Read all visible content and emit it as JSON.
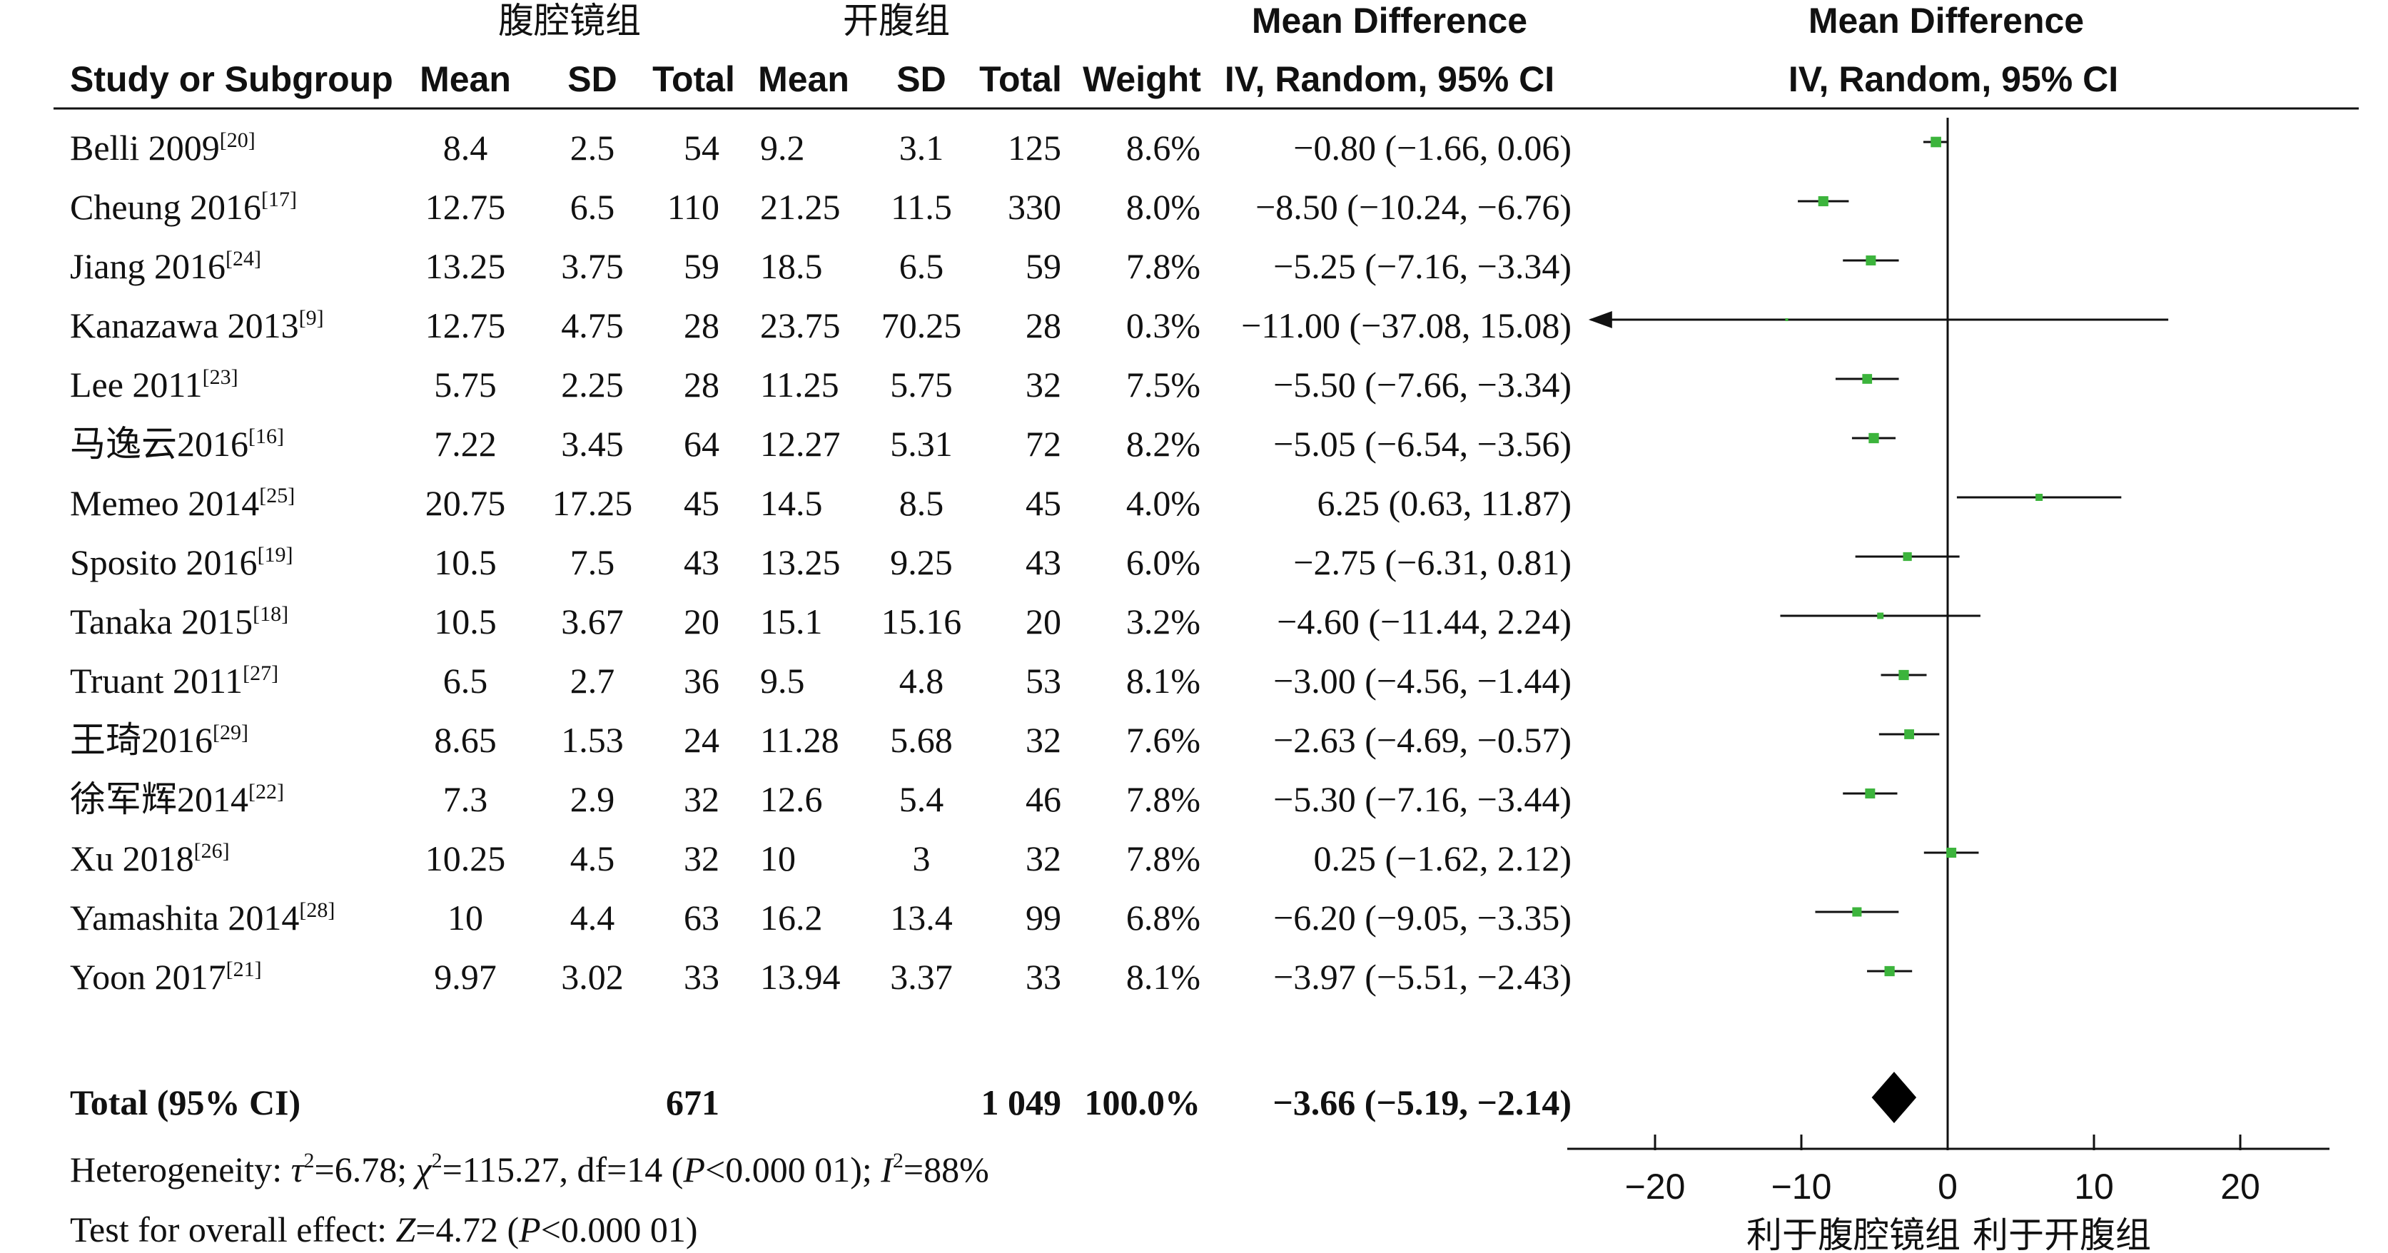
{
  "header": {
    "group_lap": "腹腔镜组",
    "group_open": "开腹组",
    "md_title": "Mean Difference",
    "study_col": "Study or Subgroup",
    "mean": "Mean",
    "sd": "SD",
    "total": "Total",
    "weight": "Weight",
    "method": "IV, Random, 95% CI",
    "plot_title": "Mean Difference",
    "plot_method": "IV, Random, 95% CI"
  },
  "rows": [
    {
      "study": "Belli 2009",
      "ref": "[20]",
      "m1": "8.4",
      "sd1": "2.5",
      "n1": "54",
      "m2": "9.2",
      "sd2": "3.1",
      "n2": "125",
      "weight": "8.6%",
      "ci": "−0.80 (−1.66, 0.06)"
    },
    {
      "study": "Cheung 2016",
      "ref": "[17]",
      "m1": "12.75",
      "sd1": "6.5",
      "n1": "110",
      "m2": "21.25",
      "sd2": "11.5",
      "n2": "330",
      "weight": "8.0%",
      "ci": "−8.50 (−10.24, −6.76)"
    },
    {
      "study": "Jiang 2016",
      "ref": "[24]",
      "m1": "13.25",
      "sd1": "3.75",
      "n1": "59",
      "m2": "18.5",
      "sd2": "6.5",
      "n2": "59",
      "weight": "7.8%",
      "ci": "−5.25 (−7.16, −3.34)"
    },
    {
      "study": "Kanazawa 2013",
      "ref": "[9]",
      "m1": "12.75",
      "sd1": "4.75",
      "n1": "28",
      "m2": "23.75",
      "sd2": "70.25",
      "n2": "28",
      "weight": "0.3%",
      "ci": "−11.00 (−37.08, 15.08)"
    },
    {
      "study": "Lee 2011",
      "ref": "[23]",
      "m1": "5.75",
      "sd1": "2.25",
      "n1": "28",
      "m2": "11.25",
      "sd2": "5.75",
      "n2": "32",
      "weight": "7.5%",
      "ci": "−5.50 (−7.66, −3.34)"
    },
    {
      "study": "马逸云2016",
      "ref": "[16]",
      "m1": "7.22",
      "sd1": "3.45",
      "n1": "64",
      "m2": "12.27",
      "sd2": "5.31",
      "n2": "72",
      "weight": "8.2%",
      "ci": "−5.05 (−6.54, −3.56)"
    },
    {
      "study": "Memeo 2014",
      "ref": "[25]",
      "m1": "20.75",
      "sd1": "17.25",
      "n1": "45",
      "m2": "14.5",
      "sd2": "8.5",
      "n2": "45",
      "weight": "4.0%",
      "ci": "6.25 (0.63, 11.87)"
    },
    {
      "study": "Sposito 2016",
      "ref": "[19]",
      "m1": "10.5",
      "sd1": "7.5",
      "n1": "43",
      "m2": "13.25",
      "sd2": "9.25",
      "n2": "43",
      "weight": "6.0%",
      "ci": "−2.75 (−6.31, 0.81)"
    },
    {
      "study": "Tanaka 2015",
      "ref": "[18]",
      "m1": "10.5",
      "sd1": "3.67",
      "n1": "20",
      "m2": "15.1",
      "sd2": "15.16",
      "n2": "20",
      "weight": "3.2%",
      "ci": "−4.60 (−11.44, 2.24)"
    },
    {
      "study": "Truant 2011",
      "ref": "[27]",
      "m1": "6.5",
      "sd1": "2.7",
      "n1": "36",
      "m2": "9.5",
      "sd2": "4.8",
      "n2": "53",
      "weight": "8.1%",
      "ci": "−3.00 (−4.56, −1.44)"
    },
    {
      "study": "王琦2016",
      "ref": "[29]",
      "m1": "8.65",
      "sd1": "1.53",
      "n1": "24",
      "m2": "11.28",
      "sd2": "5.68",
      "n2": "32",
      "weight": "7.6%",
      "ci": "−2.63 (−4.69, −0.57)"
    },
    {
      "study": "徐军辉2014",
      "ref": "[22]",
      "m1": "7.3",
      "sd1": "2.9",
      "n1": "32",
      "m2": "12.6",
      "sd2": "5.4",
      "n2": "46",
      "weight": "7.8%",
      "ci": "−5.30 (−7.16, −3.44)"
    },
    {
      "study": "Xu 2018",
      "ref": "[26]",
      "m1": "10.25",
      "sd1": "4.5",
      "n1": "32",
      "m2": "10",
      "sd2": "3",
      "n2": "32",
      "weight": "7.8%",
      "ci": "0.25 (−1.62, 2.12)"
    },
    {
      "study": "Yamashita 2014",
      "ref": "[28]",
      "m1": "10",
      "sd1": "4.4",
      "n1": "63",
      "m2": "16.2",
      "sd2": "13.4",
      "n2": "99",
      "weight": "6.8%",
      "ci": "−6.20 (−9.05, −3.35)"
    },
    {
      "study": "Yoon 2017",
      "ref": "[21]",
      "m1": "9.97",
      "sd1": "3.02",
      "n1": "33",
      "m2": "13.94",
      "sd2": "3.37",
      "n2": "33",
      "weight": "8.1%",
      "ci": "−3.97 (−5.51, −2.43)"
    }
  ],
  "total": {
    "label": "Total (95% CI)",
    "n1": "671",
    "n2": "1 049",
    "weight": "100.0%",
    "ci": "−3.66 (−5.19, −2.14)"
  },
  "footer": {
    "het_a": "Heterogeneity: ",
    "tau": "τ",
    "het_b": "=6.78; ",
    "chi": "χ",
    "het_c": "=115.27, df=14 (",
    "p1": "P",
    "het_d": "<0.000 01); ",
    "i": "I",
    "het_e": "=88%",
    "sup2": "2",
    "eff_a": "Test for overall effect: ",
    "z": "Z",
    "eff_b": "=4.72 (",
    "p2": "P",
    "eff_c": "<0.000 01)"
  },
  "axis": {
    "favours_left": "利于腹腔镜组",
    "favours_right": "利于开腹组"
  },
  "colors": {
    "square": "#3cb43c",
    "diamond": "#000000",
    "line": "#111111"
  },
  "chart_data": {
    "type": "forest",
    "measure": "Mean Difference",
    "xlim": [
      -25,
      25
    ],
    "xticks": [
      -20,
      -10,
      0,
      10,
      20
    ],
    "tick_labels": [
      "−20",
      "−10",
      "0",
      "10",
      "20"
    ],
    "points": [
      {
        "study": "Belli 2009",
        "md": -0.8,
        "lo": -1.66,
        "hi": 0.06,
        "weight": 8.6
      },
      {
        "study": "Cheung 2016",
        "md": -8.5,
        "lo": -10.24,
        "hi": -6.76,
        "weight": 8.0
      },
      {
        "study": "Jiang 2016",
        "md": -5.25,
        "lo": -7.16,
        "hi": -3.34,
        "weight": 7.8
      },
      {
        "study": "Kanazawa 2013",
        "md": -11.0,
        "lo": -37.08,
        "hi": 15.08,
        "weight": 0.3
      },
      {
        "study": "Lee 2011",
        "md": -5.5,
        "lo": -7.66,
        "hi": -3.34,
        "weight": 7.5
      },
      {
        "study": "马逸云2016",
        "md": -5.05,
        "lo": -6.54,
        "hi": -3.56,
        "weight": 8.2
      },
      {
        "study": "Memeo 2014",
        "md": 6.25,
        "lo": 0.63,
        "hi": 11.87,
        "weight": 4.0
      },
      {
        "study": "Sposito 2016",
        "md": -2.75,
        "lo": -6.31,
        "hi": 0.81,
        "weight": 6.0
      },
      {
        "study": "Tanaka 2015",
        "md": -4.6,
        "lo": -11.44,
        "hi": 2.24,
        "weight": 3.2
      },
      {
        "study": "Truant 2011",
        "md": -3.0,
        "lo": -4.56,
        "hi": -1.44,
        "weight": 8.1
      },
      {
        "study": "王琦2016",
        "md": -2.63,
        "lo": -4.69,
        "hi": -0.57,
        "weight": 7.6
      },
      {
        "study": "徐军辉2014",
        "md": -5.3,
        "lo": -7.16,
        "hi": -3.44,
        "weight": 7.8
      },
      {
        "study": "Xu 2018",
        "md": 0.25,
        "lo": -1.62,
        "hi": 2.12,
        "weight": 7.8
      },
      {
        "study": "Yamashita 2014",
        "md": -6.2,
        "lo": -9.05,
        "hi": -3.35,
        "weight": 6.8
      },
      {
        "study": "Yoon 2017",
        "md": -3.97,
        "lo": -5.51,
        "hi": -2.43,
        "weight": 8.1
      }
    ],
    "pooled": {
      "md": -3.66,
      "lo": -5.19,
      "hi": -2.14,
      "weight": 100.0
    }
  }
}
